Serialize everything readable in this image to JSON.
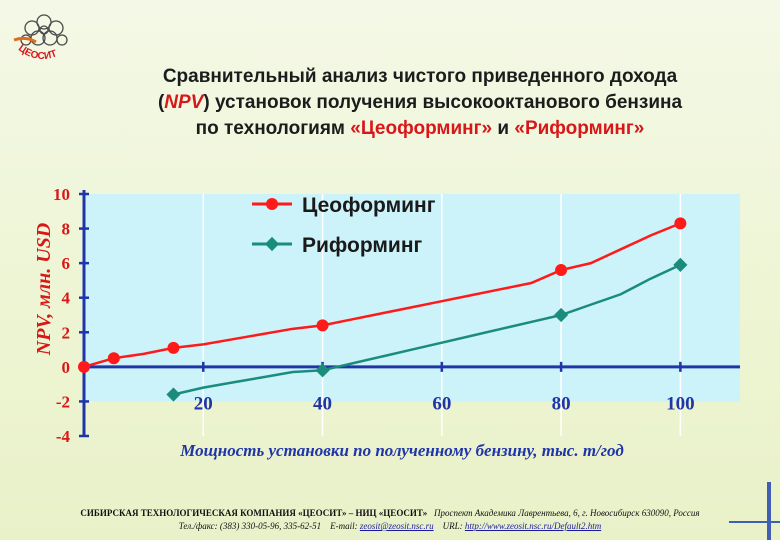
{
  "logo": {
    "text": "ЦЕОСИТ",
    "icon": "zeolite-lattice-icon"
  },
  "title": {
    "line1": "Сравнительный анализ чистого приведенного дохода",
    "line2_open": "(",
    "line2_abbr": "NPV",
    "line2_rest": ") установок получения высокооктанового бензина",
    "line3_start": "по технологиям ",
    "line3_zeo": "«Цеоформинг»",
    "line3_mid": " и ",
    "line3_ref": "«Риформинг»"
  },
  "chart_data": {
    "type": "line",
    "xlabel": "Мощность установки по полученному бензину, тыс. т/год",
    "ylabel": "NPV, млн. USD",
    "xlim": [
      0,
      110
    ],
    "ylim": [
      -4,
      10
    ],
    "xticks": [
      20,
      40,
      60,
      80,
      100
    ],
    "yticks": [
      -4,
      -2,
      0,
      2,
      4,
      6,
      8,
      10
    ],
    "grid": "vertical",
    "legend_position": "top-left",
    "series": [
      {
        "name": "Цеоформинг",
        "color": "#ff1a1a",
        "marker": "circle",
        "x": [
          0,
          5,
          10,
          15,
          20,
          25,
          30,
          35,
          40,
          45,
          50,
          55,
          60,
          65,
          70,
          75,
          80,
          85,
          90,
          95,
          100
        ],
        "y": [
          0.0,
          0.5,
          0.75,
          1.1,
          1.3,
          1.6,
          1.9,
          2.2,
          2.4,
          2.75,
          3.1,
          3.45,
          3.8,
          4.15,
          4.5,
          4.85,
          5.6,
          6.0,
          6.8,
          7.6,
          8.3
        ],
        "marker_x": [
          0,
          5,
          15,
          40,
          80,
          100
        ],
        "marker_y": [
          0.0,
          0.5,
          1.1,
          2.4,
          5.6,
          8.3
        ]
      },
      {
        "name": "Риформинг",
        "color": "#1a8c7c",
        "marker": "diamond",
        "x": [
          15,
          20,
          25,
          30,
          35,
          40,
          45,
          50,
          55,
          60,
          65,
          70,
          75,
          80,
          85,
          90,
          95,
          100
        ],
        "y": [
          -1.6,
          -1.2,
          -0.9,
          -0.6,
          -0.3,
          -0.2,
          0.2,
          0.6,
          1.0,
          1.4,
          1.8,
          2.2,
          2.6,
          3.0,
          3.6,
          4.2,
          5.1,
          5.9
        ],
        "marker_x": [
          15,
          40,
          80,
          100
        ],
        "marker_y": [
          -1.6,
          -0.2,
          3.0,
          5.9
        ]
      }
    ]
  },
  "footer": {
    "company": "СИБИРСКАЯ ТЕХНОЛОГИЧЕСКАЯ КОМПАНИЯ «ЦЕОСИТ» – НИЦ «ЦЕОСИТ»",
    "address": "Проспект Академика Лаврентьева, 6, г. Новосибирск 630090, Россия",
    "phone": "Тел./факс: (383) 330-05-96, 335-62-51",
    "email_label": "E-mail: ",
    "email": "zeosit@zeosit.nsc.ru",
    "url_label": "URL: ",
    "url": "http://www.zeosit.nsc.ru/Default2.htm"
  },
  "colors": {
    "plot_bg": "#ccf2fa",
    "axis": "#1f35a8",
    "tick_labels": "#d81818",
    "accent_line": "#3f5fb7"
  }
}
